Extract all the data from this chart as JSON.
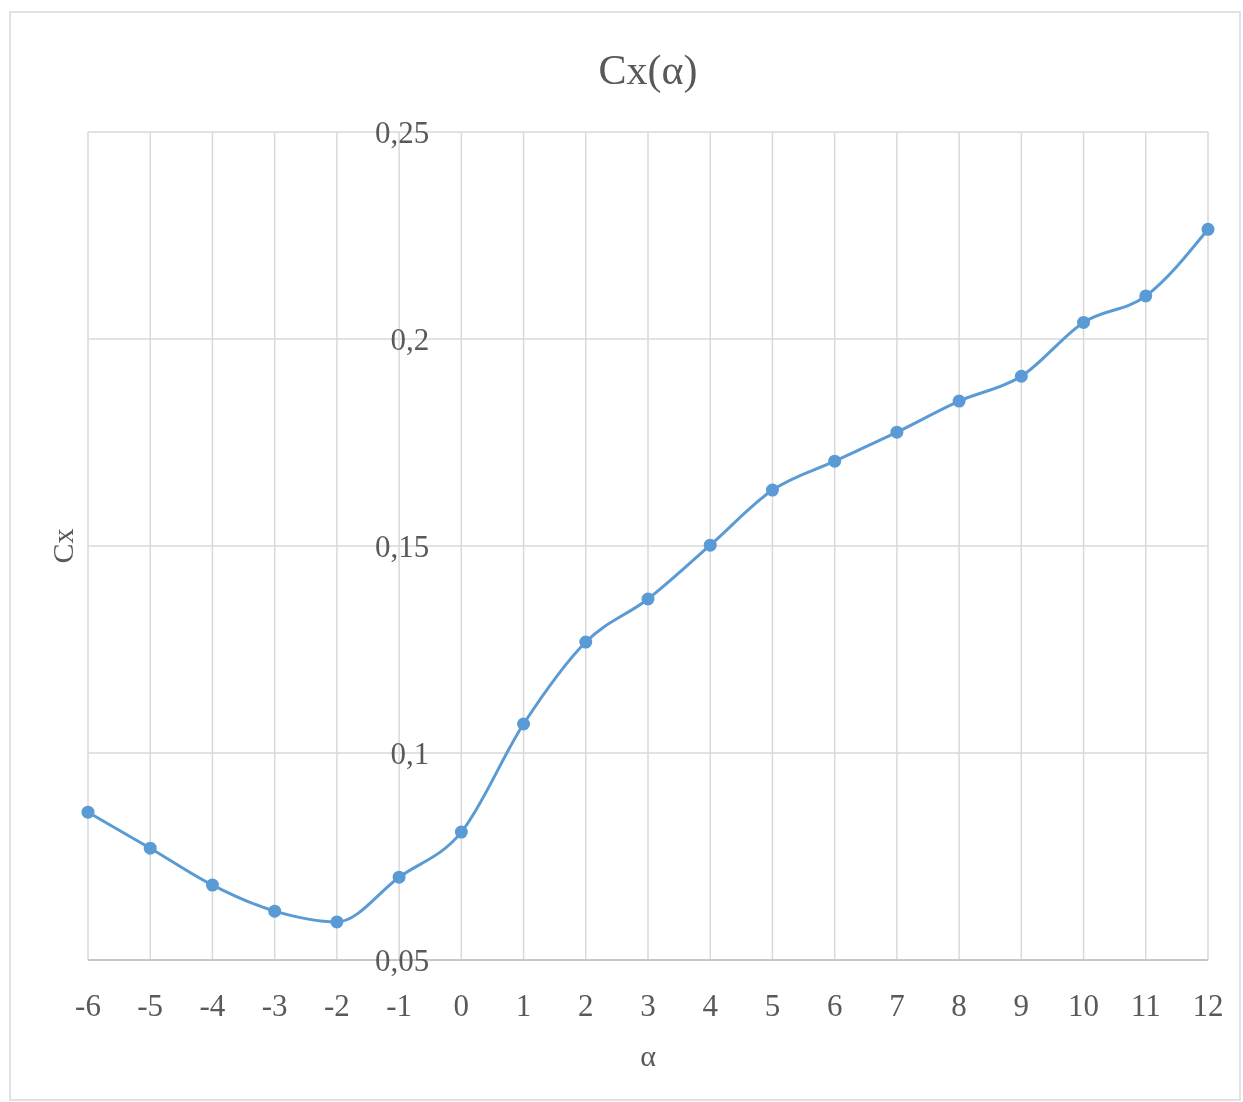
{
  "chart_data": {
    "type": "line",
    "title": "Cx(α)",
    "xlabel": "α",
    "ylabel": "Cx",
    "x": [
      -6,
      -5,
      -4,
      -3,
      -2,
      -1,
      0,
      1,
      2,
      3,
      4,
      5,
      6,
      7,
      8,
      9,
      10,
      11,
      12
    ],
    "series": [
      {
        "color": "#5b9bd5",
        "values": [
          0.0857,
          0.077,
          0.0681,
          0.0618,
          0.0592,
          0.07,
          0.0809,
          0.107,
          0.1268,
          0.1372,
          0.1502,
          0.1635,
          0.1705,
          0.1775,
          0.185,
          0.191,
          0.204,
          0.2104,
          0.2265
        ]
      }
    ],
    "xlim": [
      -6,
      12
    ],
    "xticks": [
      -6,
      -5,
      -4,
      -3,
      -2,
      -1,
      0,
      1,
      2,
      3,
      4,
      5,
      6,
      7,
      8,
      9,
      10,
      11,
      12
    ],
    "ylim": [
      0.05,
      0.25
    ],
    "yticks": [
      {
        "value": 0.05,
        "label": "0,05"
      },
      {
        "value": 0.1,
        "label": "0,1"
      },
      {
        "value": 0.15,
        "label": "0,15"
      },
      {
        "value": 0.2,
        "label": "0,2"
      },
      {
        "value": 0.25,
        "label": "0,25"
      }
    ],
    "grid": true,
    "marker": "circle",
    "line_style": "solid"
  }
}
